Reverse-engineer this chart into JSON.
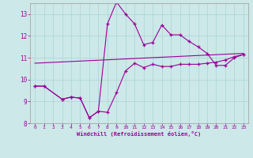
{
  "xlabel": "Windchill (Refroidissement éolien,°C)",
  "background_color": "#cce8e8",
  "grid_color": "#aad4d4",
  "line_color": "#990099",
  "xlim": [
    -0.5,
    23.5
  ],
  "ylim": [
    8,
    13.5
  ],
  "yticks": [
    8,
    9,
    10,
    11,
    12,
    13
  ],
  "xticks": [
    0,
    1,
    2,
    3,
    4,
    5,
    6,
    7,
    8,
    9,
    10,
    11,
    12,
    13,
    14,
    15,
    16,
    17,
    18,
    19,
    20,
    21,
    22,
    23
  ],
  "series1_x": [
    0,
    1,
    3,
    4,
    5,
    6,
    7,
    8,
    9,
    10,
    11,
    12,
    13,
    14,
    15,
    16,
    17,
    18,
    19,
    20,
    21,
    22,
    23
  ],
  "series1_y": [
    9.7,
    9.7,
    9.1,
    9.2,
    9.15,
    8.25,
    8.55,
    8.5,
    9.4,
    10.4,
    10.75,
    10.55,
    10.7,
    10.6,
    10.6,
    10.7,
    10.7,
    10.7,
    10.75,
    10.8,
    10.9,
    11.05,
    11.15
  ],
  "series2_x": [
    0,
    23
  ],
  "series2_y": [
    10.75,
    11.2
  ],
  "series3_x": [
    0,
    1,
    3,
    4,
    5,
    6,
    7,
    8,
    9,
    10,
    11,
    12,
    13,
    14,
    15,
    16,
    17,
    18,
    19,
    20,
    21,
    22,
    23
  ],
  "series3_y": [
    9.7,
    9.7,
    9.1,
    9.2,
    9.15,
    8.25,
    8.55,
    12.55,
    13.55,
    13.0,
    12.55,
    11.6,
    11.7,
    12.5,
    12.05,
    12.05,
    11.75,
    11.5,
    11.2,
    10.65,
    10.65,
    11.0,
    11.15
  ]
}
